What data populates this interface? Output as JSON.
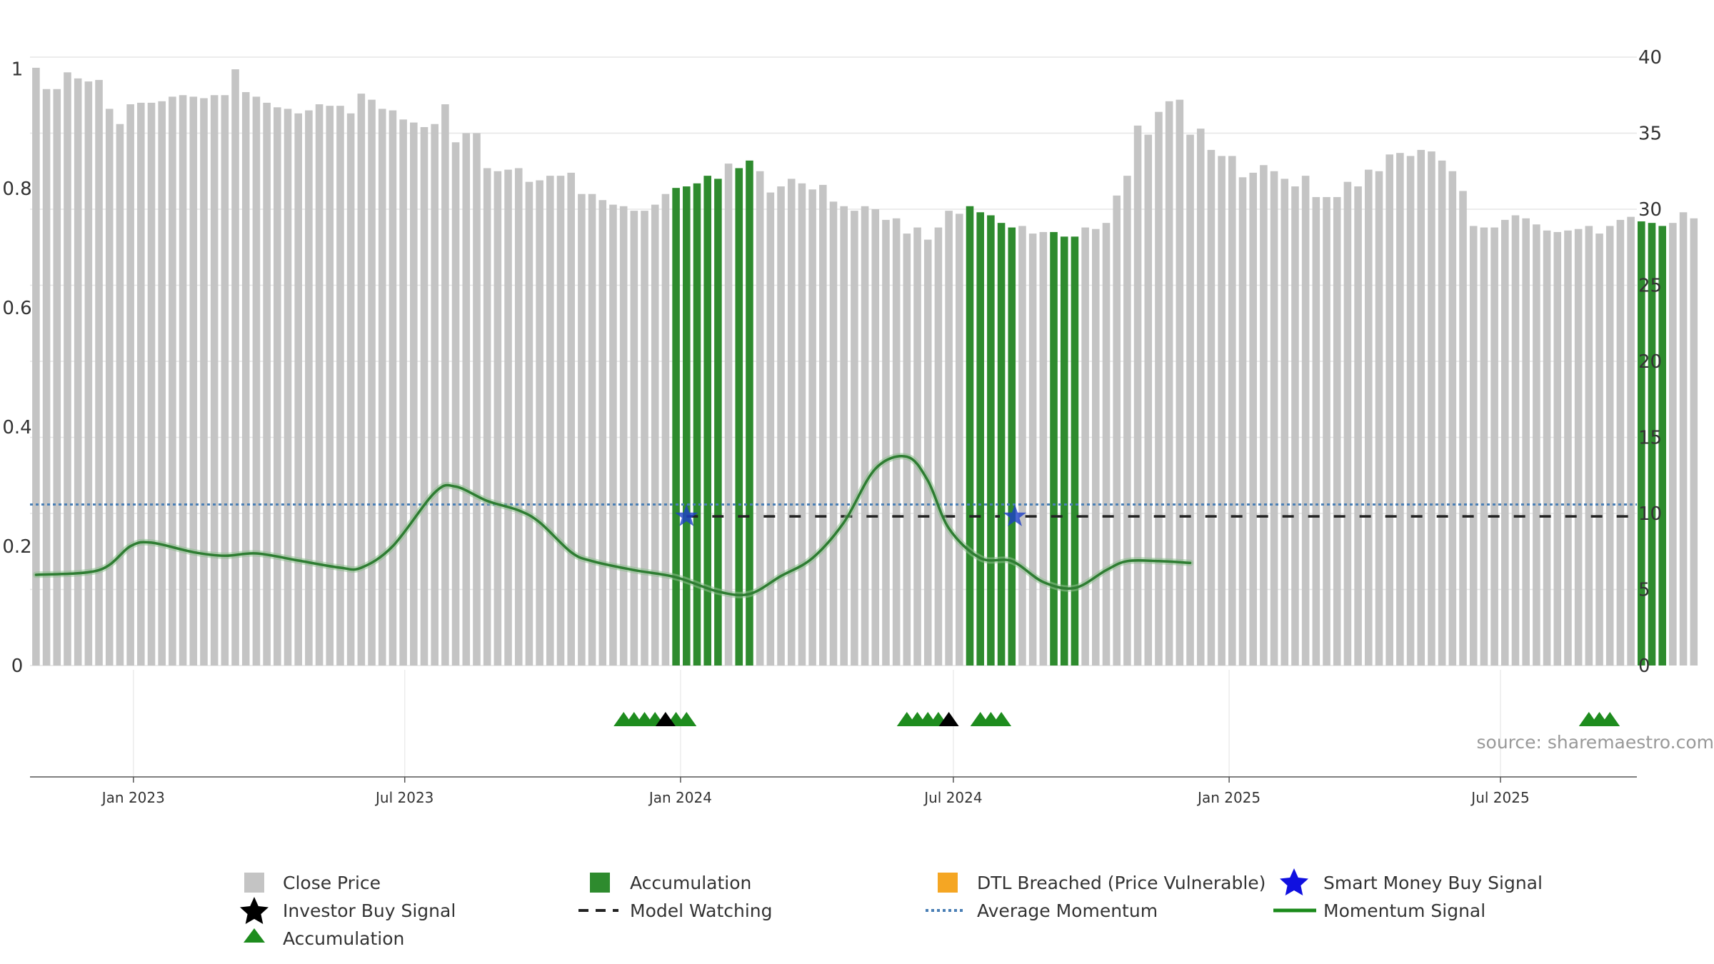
{
  "chart_data": {
    "type": "bar",
    "source_note": "source: sharemaestro.com",
    "left_axis": {
      "ylim": [
        0,
        1.02
      ],
      "ticks": [
        "0",
        "0.2",
        "0.4",
        "0.6",
        "0.8",
        "1"
      ],
      "tick_values": [
        0,
        0.2,
        0.4,
        0.6,
        0.8,
        1.0
      ]
    },
    "right_axis": {
      "ylim": [
        0,
        40
      ],
      "ticks": [
        "0",
        "5",
        "10",
        "15",
        "20",
        "25",
        "30",
        "35",
        "40"
      ],
      "tick_values": [
        0,
        5,
        10,
        15,
        20,
        25,
        30,
        35,
        40
      ]
    },
    "x_axis": {
      "range": [
        "2022-10-24",
        "2025-09-30"
      ],
      "ticks": [
        {
          "label": "Jan 2023",
          "date": "2023-01-01"
        },
        {
          "label": "Jul 2023",
          "date": "2023-07-01"
        },
        {
          "label": "Jan 2024",
          "date": "2024-01-01"
        },
        {
          "label": "Jul 2024",
          "date": "2024-07-01"
        },
        {
          "label": "Jan 2025",
          "date": "2025-01-01"
        },
        {
          "label": "Jul 2025",
          "date": "2025-07-01"
        }
      ]
    },
    "colors": {
      "close": "#c4c4c4",
      "accumulation": "#2e8b2e",
      "momentum": "#2e7d32",
      "average": "#4a7fb5",
      "watch": "#222222",
      "smart_money": "#1e40c8",
      "triangle_green": "#1e8c1e",
      "triangle_black": "#000000",
      "dtl": "#f5a623"
    },
    "close_price": {
      "start_date": "2022-10-28",
      "interval_days": 7,
      "values": [
        39.3,
        37.9,
        37.9,
        39.0,
        38.6,
        38.4,
        38.5,
        36.6,
        35.6,
        36.9,
        37.0,
        37.0,
        37.1,
        37.4,
        37.5,
        37.4,
        37.3,
        37.5,
        37.5,
        39.2,
        37.7,
        37.4,
        37.0,
        36.7,
        36.6,
        36.3,
        36.5,
        36.9,
        36.8,
        36.8,
        36.3,
        37.6,
        37.2,
        36.6,
        36.5,
        35.9,
        35.7,
        35.4,
        35.6,
        36.9,
        34.4,
        35.0,
        35.0,
        32.7,
        32.5,
        32.6,
        32.7,
        31.8,
        31.9,
        32.2,
        32.2,
        32.4,
        31.0,
        31.0,
        30.6,
        30.3,
        30.2,
        29.9,
        29.9,
        30.3,
        31.0,
        31.4,
        31.5,
        31.7,
        32.2,
        32.0,
        33.0,
        32.7,
        33.2,
        32.5,
        31.1,
        31.5,
        32.0,
        31.7,
        31.3,
        31.6,
        30.5,
        30.2,
        29.9,
        30.2,
        30.0,
        29.3,
        29.4,
        28.4,
        28.8,
        28.0,
        28.8,
        29.9,
        29.7,
        30.2,
        29.8,
        29.6,
        29.1,
        28.8,
        28.9,
        28.4,
        28.5,
        28.5,
        28.2,
        28.2,
        28.8,
        28.7,
        29.1,
        30.9,
        32.2,
        35.5,
        34.9,
        36.4,
        37.1,
        37.2,
        34.9,
        35.3,
        33.9,
        33.5,
        33.5,
        32.1,
        32.4,
        32.9,
        32.5,
        32.0,
        31.5,
        32.2,
        30.8,
        30.8,
        30.8,
        31.8,
        31.5,
        32.6,
        32.5,
        33.6,
        33.7,
        33.5,
        33.9,
        33.8,
        33.2,
        32.5,
        31.2,
        28.9,
        28.8,
        28.8,
        29.3,
        29.6,
        29.4,
        29.0,
        28.6,
        28.5,
        28.6,
        28.7,
        28.9,
        28.4,
        28.9,
        29.3,
        29.5,
        29.2,
        29.1,
        28.9,
        29.1,
        29.8,
        29.4
      ],
      "accumulation_ranges": [
        [
          61,
          65
        ],
        [
          67,
          68
        ],
        [
          89,
          93
        ],
        [
          97,
          99
        ],
        [
          153,
          155
        ]
      ]
    },
    "momentum": {
      "series": [
        {
          "d": "2022-10-28",
          "v": 0.152
        },
        {
          "d": "2022-12-09",
          "v": 0.16
        },
        {
          "d": "2022-12-30",
          "v": 0.2
        },
        {
          "d": "2023-01-13",
          "v": 0.206
        },
        {
          "d": "2023-02-10",
          "v": 0.19
        },
        {
          "d": "2023-03-03",
          "v": 0.184
        },
        {
          "d": "2023-03-24",
          "v": 0.188
        },
        {
          "d": "2023-04-21",
          "v": 0.176
        },
        {
          "d": "2023-05-19",
          "v": 0.164
        },
        {
          "d": "2023-06-02",
          "v": 0.164
        },
        {
          "d": "2023-06-23",
          "v": 0.2
        },
        {
          "d": "2023-07-21",
          "v": 0.29
        },
        {
          "d": "2023-08-04",
          "v": 0.3
        },
        {
          "d": "2023-08-25",
          "v": 0.276
        },
        {
          "d": "2023-09-15",
          "v": 0.26
        },
        {
          "d": "2023-09-29",
          "v": 0.24
        },
        {
          "d": "2023-10-20",
          "v": 0.19
        },
        {
          "d": "2023-11-03",
          "v": 0.175
        },
        {
          "d": "2023-12-01",
          "v": 0.16
        },
        {
          "d": "2023-12-29",
          "v": 0.148
        },
        {
          "d": "2024-01-26",
          "v": 0.124
        },
        {
          "d": "2024-02-16",
          "v": 0.12
        },
        {
          "d": "2024-03-08",
          "v": 0.15
        },
        {
          "d": "2024-03-29",
          "v": 0.18
        },
        {
          "d": "2024-04-19",
          "v": 0.24
        },
        {
          "d": "2024-05-10",
          "v": 0.33
        },
        {
          "d": "2024-05-31",
          "v": 0.35
        },
        {
          "d": "2024-06-14",
          "v": 0.31
        },
        {
          "d": "2024-06-28",
          "v": 0.23
        },
        {
          "d": "2024-07-19",
          "v": 0.18
        },
        {
          "d": "2024-08-09",
          "v": 0.175
        },
        {
          "d": "2024-08-30",
          "v": 0.14
        },
        {
          "d": "2024-09-20",
          "v": 0.13
        },
        {
          "d": "2024-10-11",
          "v": 0.16
        },
        {
          "d": "2024-10-25",
          "v": 0.175
        },
        {
          "d": "2024-11-15",
          "v": 0.175
        },
        {
          "d": "2024-12-06",
          "v": 0.172
        }
      ],
      "note": "momentum plotted as 0-1 index against left axis"
    },
    "average_momentum": {
      "value": 0.27
    },
    "model_watching": {
      "value": 0.25,
      "segments": [
        [
          "2024-01-05",
          "2024-08-01"
        ],
        [
          "2024-08-18",
          "2025-09-30"
        ]
      ]
    },
    "smart_money_buy_signals": [
      {
        "date": "2024-01-05",
        "value": 0.25
      },
      {
        "date": "2024-08-11",
        "value": 0.25
      }
    ],
    "accumulation_triangles": [
      "2023-11-24",
      "2023-12-01",
      "2023-12-08",
      "2023-12-15",
      "2023-12-29",
      "2024-01-05",
      "2024-05-31",
      "2024-06-07",
      "2024-06-14",
      "2024-06-21",
      "2024-07-19",
      "2024-07-26",
      "2024-08-02",
      "2025-08-29",
      "2025-09-05",
      "2025-09-12"
    ],
    "investor_buy_triangles": [
      "2023-12-22",
      "2024-06-28"
    ],
    "legend": [
      {
        "label": "Close Price",
        "icon": "gray-square"
      },
      {
        "label": "Accumulation",
        "icon": "green-square"
      },
      {
        "label": "DTL Breached (Price Vulnerable)",
        "icon": "orange-square"
      },
      {
        "label": "Smart Money Buy Signal",
        "icon": "blue-star"
      },
      {
        "label": "Investor Buy Signal",
        "icon": "black-star"
      },
      {
        "label": "Model Watching",
        "icon": "black-dash"
      },
      {
        "label": "Average Momentum",
        "icon": "blue-dots"
      },
      {
        "label": "Momentum Signal",
        "icon": "green-line"
      },
      {
        "label": "Accumulation",
        "icon": "green-triangle"
      }
    ]
  }
}
